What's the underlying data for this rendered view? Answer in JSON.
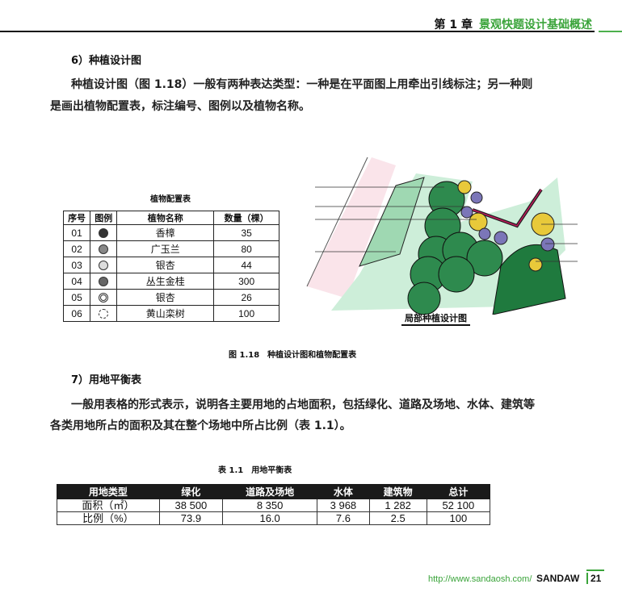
{
  "header": {
    "chapter": "第 1 章",
    "title": "景观快题设计基础概述"
  },
  "section6": {
    "heading": "6）种植设计图",
    "para_line1": "种植设计图（图 1.18）一般有两种表达类型：一种是在平面图上用牵出引线标注；另一种则",
    "para_line2": "是画出植物配置表，标注编号、图例以及植物名称。"
  },
  "plant_table": {
    "title": "植物配置表",
    "headers": [
      "序号",
      "图例",
      "植物名称",
      "数量（棵）"
    ],
    "rows": [
      {
        "no": "01",
        "name": "香樟",
        "qty": "35",
        "icon": "dark-tree-symbol"
      },
      {
        "no": "02",
        "name": "广玉兰",
        "qty": "80",
        "icon": "tree-symbol"
      },
      {
        "no": "03",
        "name": "银杏",
        "qty": "44",
        "icon": "radial-tree-symbol"
      },
      {
        "no": "04",
        "name": "丛生金桂",
        "qty": "300",
        "icon": "star-tree-symbol"
      },
      {
        "no": "05",
        "name": "银杏",
        "qty": "26",
        "icon": "ring-tree-symbol"
      },
      {
        "no": "06",
        "name": "黄山栾树",
        "qty": "100",
        "icon": "flower-tree-symbol"
      }
    ]
  },
  "drawing": {
    "label": "局部种植设计图",
    "colors": {
      "green": "#2e9a55",
      "light": "#bfe6cf",
      "yellow": "#e8c93a",
      "purple": "#7b76b8",
      "pink": "#f2b8c6"
    }
  },
  "figure_caption": "图 1.18　种植设计图和植物配置表",
  "section7": {
    "heading": "7）用地平衡表",
    "para_line1": "一般用表格的形式表示，说明各主要用地的占地面积，包括绿化、道路及场地、水体、建筑等",
    "para_line2": "各类用地所占的面积及其在整个场地中所占比例（表 1.1）。"
  },
  "land_table": {
    "title": "表 1.1　用地平衡表",
    "headers": [
      "用地类型",
      "绿化",
      "道路及场地",
      "水体",
      "建筑物",
      "总计"
    ],
    "rows": [
      [
        "面积（㎡）",
        "38 500",
        "8 350",
        "3 968",
        "1 282",
        "52 100"
      ],
      [
        "比例（%）",
        "73.9",
        "16.0",
        "7.6",
        "2.5",
        "100"
      ]
    ]
  },
  "footer": {
    "url": "http://www.sandaosh.com/",
    "brand": "SANDAW",
    "page": "21"
  }
}
